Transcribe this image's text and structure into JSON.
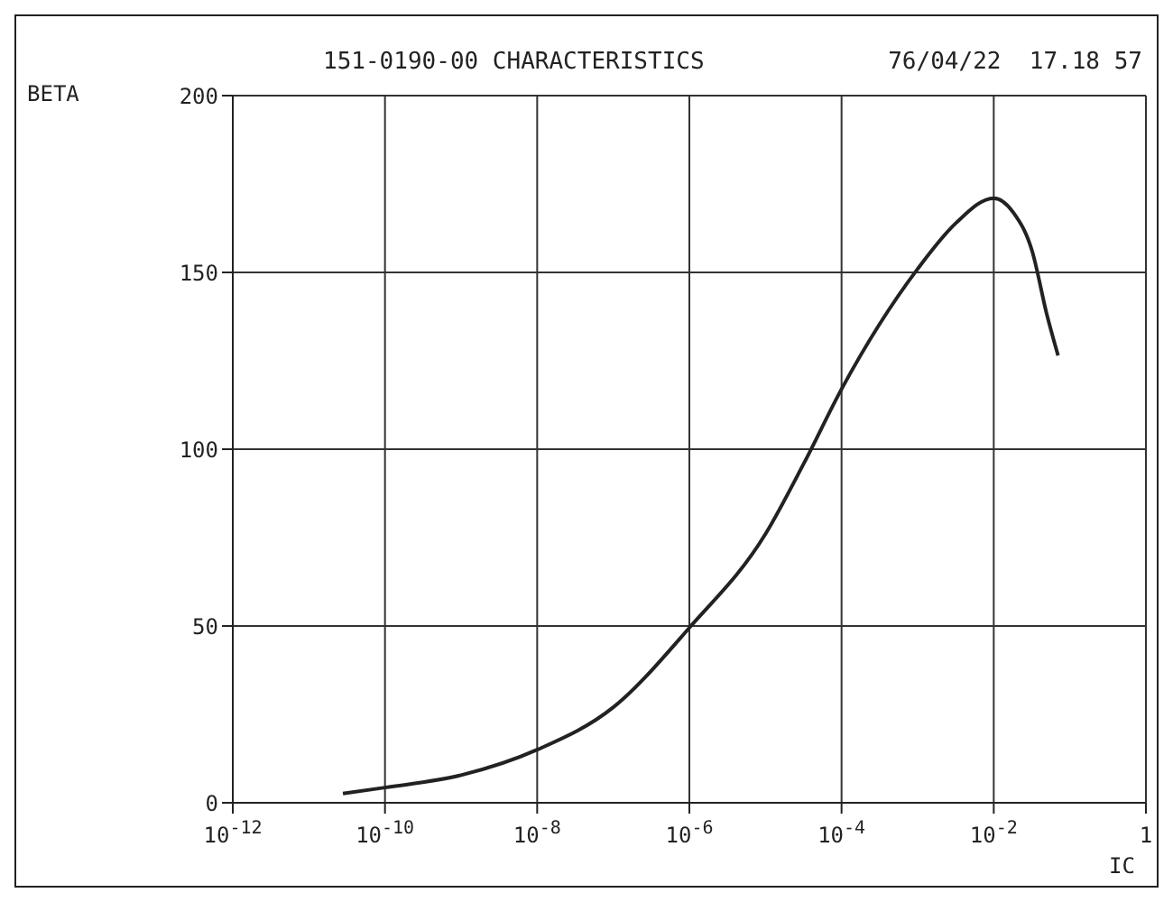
{
  "chart_data": {
    "type": "line",
    "title": "151-0190-00 CHARACTERISTICS",
    "xlabel": "IC",
    "ylabel": "BETA",
    "annotations": [
      "76/04/22  17.18 57"
    ],
    "x": [
      2.8e-11,
      1e-10,
      1e-09,
      1e-08,
      1e-07,
      1e-06,
      1e-05,
      3.2e-05,
      0.0001,
      0.001,
      0.0032,
      0.01,
      0.018,
      0.032,
      0.05,
      0.07
    ],
    "series": [
      {
        "color": "#222222",
        "values": [
          2.6,
          4.3,
          7.8,
          15,
          27,
          49.5,
          76,
          96,
          117,
          151,
          164,
          171,
          167,
          156,
          138,
          126.5
        ]
      }
    ],
    "log": "x",
    "xlim": [
      1e-12,
      1
    ],
    "xticks": [
      {
        "value": 1e-12,
        "label": "10$^{-12}$"
      },
      {
        "value": 1e-10,
        "label": "10$^{-10}$"
      },
      {
        "value": 1e-08,
        "label": "10$^{-8}$"
      },
      {
        "value": 1e-06,
        "label": "10$^{-6}$"
      },
      {
        "value": 0.0001,
        "label": "10$^{-4}$"
      },
      {
        "value": 0.01,
        "label": "10$^{-2}$"
      },
      1
    ],
    "ylim": [
      0,
      200
    ],
    "yticks": [
      0,
      50,
      100,
      150,
      200
    ],
    "grid": true,
    "legend": false,
    "marker": "none",
    "line_style": "solid"
  }
}
